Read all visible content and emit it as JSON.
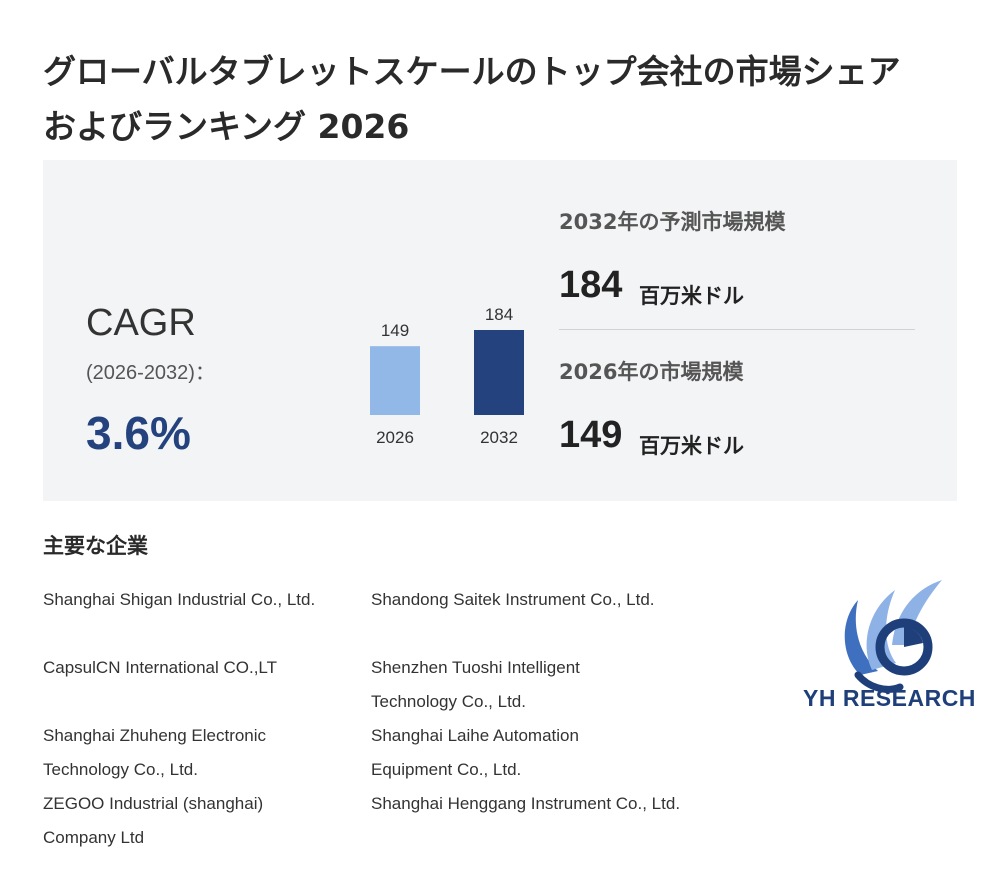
{
  "title_line1": "グローバルタブレットスケールのトップ会社の市場シェア",
  "title_line2": "およびランキング 2026",
  "cagr": {
    "label": "CAGR",
    "period": "(2026-2032)：",
    "value": "3.6%"
  },
  "chart_data": {
    "type": "bar",
    "categories": [
      "2026",
      "2032"
    ],
    "values": [
      149,
      184
    ],
    "data_labels": [
      "149",
      "184"
    ],
    "colors": [
      "#92b8e8",
      "#23427e"
    ]
  },
  "stats": {
    "forecast_label": "2032年の予測市場規模",
    "forecast_value": "184",
    "forecast_unit": "百万米ドル",
    "current_label": "2026年の市場規模",
    "current_value": "149",
    "current_unit": "百万米ドル"
  },
  "companies": {
    "heading": "主要な企業",
    "column1": [
      "Shanghai Shigan Industrial Co., Ltd.",
      "CapsulCN International CO.,LT",
      "Shanghai Zhuheng Electronic Technology Co., Ltd.",
      "ZEGOO Industrial (shanghai) Company Ltd"
    ],
    "column2": [
      "Shandong Saitek Instrument Co., Ltd.",
      "Shenzhen Tuoshi Intelligent Technology Co., Ltd.",
      "Shanghai Laihe Automation Equipment Co., Ltd.",
      "Shanghai Henggang Instrument Co., Ltd."
    ]
  },
  "logo": {
    "text": "YH RESEARCH",
    "colors": {
      "dark": "#1e3f7a",
      "mid": "#3f6fbf",
      "light": "#8fb2e6"
    }
  }
}
